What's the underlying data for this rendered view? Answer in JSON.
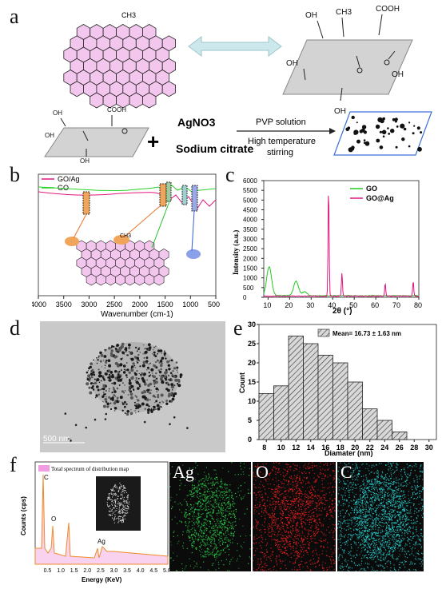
{
  "labels": {
    "a": "a",
    "b": "b",
    "c": "c",
    "d": "d",
    "e": "e",
    "f": "f"
  },
  "panel_a": {
    "groups": {
      "oh": "OH",
      "ch3": "CH3",
      "cooh": "COOH"
    },
    "reagent1": "AgNO3",
    "reagent2": "Sodium citrate",
    "cond1": "PVP solution",
    "cond2a": "High temperature",
    "cond2b": "stirring",
    "graphene_ch3": "CH3",
    "colors": {
      "orange": "#e8752a",
      "green": "#28c02c",
      "blue": "#2f5fd4",
      "pink": "#ef8fd9",
      "arrow": "#cde8ec"
    }
  },
  "panel_b": {
    "chart_data": {
      "type": "line",
      "xlabel": "Wavenumber (cm-1)",
      "xlim": [
        4000,
        500
      ],
      "ticks": [
        "4000",
        "3500",
        "3000",
        "2500",
        "2000",
        "1500",
        "1000",
        "500"
      ],
      "series": [
        {
          "name": "GO/Ag",
          "color": "#e0177f"
        },
        {
          "name": "GO",
          "color": "#2ad12a"
        }
      ]
    }
  },
  "panel_c": {
    "chart_data": {
      "type": "line",
      "xlabel": "2θ (°)",
      "ylabel": "Intensity (a.u.)",
      "xlim": [
        8,
        80
      ],
      "ylim": [
        0,
        6000
      ],
      "xticks": [
        "10",
        "20",
        "30",
        "40",
        "50",
        "60",
        "70",
        "80"
      ],
      "yticks": [
        "0",
        "500",
        "1000",
        "1500",
        "2000",
        "2500",
        "3000",
        "3500",
        "4000",
        "4500",
        "5000",
        "5500",
        "6000"
      ],
      "series": [
        {
          "name": "GO",
          "color": "#22c922",
          "peaks": [
            [
              10.5,
              1500
            ],
            [
              23,
              800
            ]
          ]
        },
        {
          "name": "GO@Ag",
          "color": "#e0177f",
          "peaks": [
            [
              38.1,
              5600
            ],
            [
              44.3,
              1200
            ],
            [
              64.4,
              650
            ],
            [
              77.4,
              750
            ]
          ]
        }
      ]
    }
  },
  "panel_d": {
    "scale": "500 nm"
  },
  "panel_e": {
    "chart_data": {
      "type": "bar",
      "legend": "Mean= 16.73 ± 1.63 nm",
      "xlabel": "Diamater (nm)",
      "ylabel": "Count",
      "xticks": [
        "8",
        "10",
        "12",
        "14",
        "16",
        "18",
        "20",
        "22",
        "24",
        "26",
        "28",
        "30"
      ],
      "yticks": [
        "0",
        "5",
        "10",
        "15",
        "20",
        "25",
        "30"
      ],
      "ylim": [
        0,
        30
      ],
      "categories": [
        8,
        10,
        12,
        14,
        16,
        18,
        20,
        22,
        24,
        26,
        28
      ],
      "values": [
        12,
        14,
        27,
        25,
        22,
        20,
        15,
        8,
        5,
        2,
        0
      ]
    }
  },
  "panel_f": {
    "chart_data": {
      "type": "area",
      "legend": "Total spectrum of distribution map",
      "xlabel": "Energy (KeV)",
      "ylabel": "Counts (cps)",
      "xticks": [
        "0.5",
        "1.0",
        "1.5",
        "2.0",
        "2.5",
        "3.0",
        "3.5",
        "4.0",
        "4.5",
        "5.0"
      ],
      "peak_labels": [
        {
          "text": "C",
          "x": 0.28
        },
        {
          "text": "O",
          "x": 0.53
        },
        {
          "text": "Ag",
          "x": 2.98
        }
      ]
    },
    "maps": [
      {
        "label": "Ag",
        "color": "#2bd64a"
      },
      {
        "label": "O",
        "color": "#ff2020"
      },
      {
        "label": "C",
        "color": "#29d6d6"
      }
    ]
  }
}
